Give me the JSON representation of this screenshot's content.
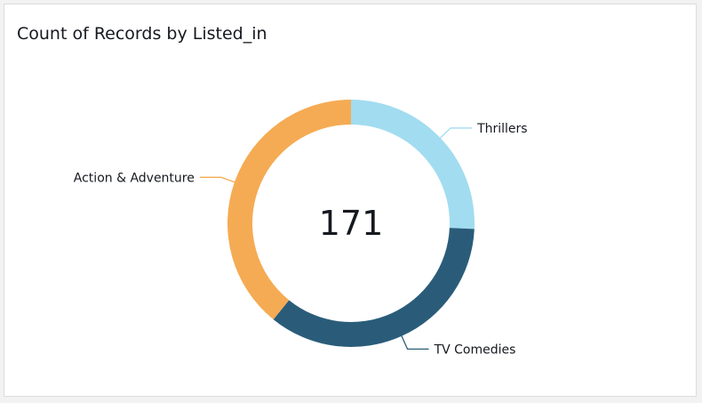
{
  "title": "Count of Records by Listed_in",
  "center_total": "171",
  "chart_data": {
    "type": "pie",
    "variant": "donut",
    "title": "Count of Records by Listed_in",
    "total": 171,
    "categories": [
      "Thrillers",
      "TV Comedies",
      "Action & Adventure"
    ],
    "values": [
      44,
      60,
      67
    ],
    "colors": [
      "#a2dcf0",
      "#2a5c7a",
      "#f5ab53"
    ],
    "legend": "none",
    "labels": "outside with leader lines"
  }
}
